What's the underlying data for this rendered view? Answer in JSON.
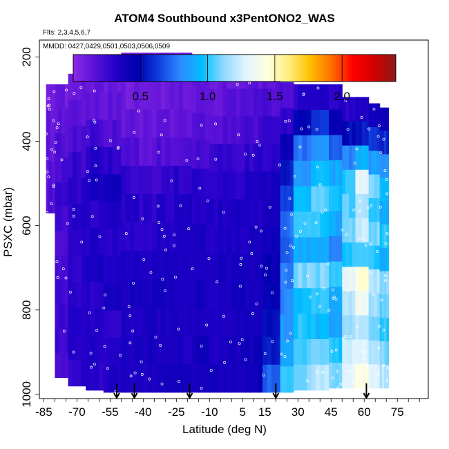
{
  "chart_data": {
    "type": "heatmap",
    "title": "ATOM4 Southbound x3PentONO2_WAS",
    "flights_note": "Flts: 2,3,4,5,6,7",
    "dates_note": "MMDD: 0427,0429,0501,0503,0506,0509",
    "xlabel": "Latitude (deg N)",
    "ylabel": "PSXC (mbar)",
    "xlim": [
      -87,
      89
    ],
    "ylim": [
      1010,
      160
    ],
    "x_tick_labels": [
      "-85",
      "-70",
      "-55",
      "-40",
      "-25",
      "-10",
      "5",
      "15",
      "30",
      "45",
      "60",
      "75"
    ],
    "x_tick_values": [
      -85,
      -70,
      -55,
      -40,
      -25,
      -10,
      5,
      15,
      30,
      45,
      60,
      75
    ],
    "y_tick_labels": [
      "200",
      "400",
      "600",
      "800",
      "1000"
    ],
    "y_tick_values": [
      200,
      400,
      600,
      800,
      1000
    ],
    "colorbar": {
      "min": 0.0,
      "max": 2.4,
      "tick_labels": [
        "0.5",
        "1.0",
        "1.5",
        "2.0"
      ],
      "tick_values": [
        0.5,
        1.0,
        1.5,
        2.0
      ],
      "colors": [
        "#8a2be2",
        "#5a10d8",
        "#2200c8",
        "#0000b0",
        "#1040e0",
        "#2e8bff",
        "#00bfff",
        "#8fd9ff",
        "#e0f4ff",
        "#ffffe0",
        "#ffef80",
        "#ffc000",
        "#ff7000",
        "#ff0000",
        "#d00000",
        "#8b1a1a"
      ]
    },
    "columns": [
      {
        "lat": [
          -84,
          -80
        ],
        "p": [
          265,
          570
        ],
        "profile": [
          0.1,
          0.12,
          0.14,
          0.16,
          0.18
        ]
      },
      {
        "lat": [
          -80,
          -74
        ],
        "p": [
          265,
          960
        ],
        "profile": [
          0.1,
          0.14,
          0.18,
          0.22,
          0.24,
          0.22,
          0.2,
          0.22,
          0.24,
          0.25,
          0.24,
          0.22
        ]
      },
      {
        "lat": [
          -74,
          -66
        ],
        "p": [
          240,
          980
        ],
        "profile": [
          0.12,
          0.16,
          0.2,
          0.26,
          0.3,
          0.32,
          0.28,
          0.3,
          0.32,
          0.34,
          0.3,
          0.28
        ]
      },
      {
        "lat": [
          -66,
          -58
        ],
        "p": [
          220,
          990
        ],
        "profile": [
          0.12,
          0.16,
          0.24,
          0.32,
          0.36,
          0.3,
          0.34,
          0.36,
          0.3,
          0.32,
          0.34,
          0.3
        ]
      },
      {
        "lat": [
          -58,
          -50
        ],
        "p": [
          220,
          995
        ],
        "profile": [
          0.1,
          0.14,
          0.2,
          0.3,
          0.38,
          0.34,
          0.3,
          0.34,
          0.36,
          0.3,
          0.32,
          0.34
        ]
      },
      {
        "lat": [
          -50,
          -42
        ],
        "p": [
          190,
          995
        ],
        "profile": [
          0.08,
          0.1,
          0.14,
          0.18,
          0.28,
          0.32,
          0.3,
          0.36,
          0.38,
          0.34,
          0.36,
          0.34
        ]
      },
      {
        "lat": [
          -42,
          -34
        ],
        "p": [
          190,
          995
        ],
        "profile": [
          0.08,
          0.1,
          0.12,
          0.16,
          0.26,
          0.3,
          0.32,
          0.36,
          0.38,
          0.36,
          0.38,
          0.36
        ]
      },
      {
        "lat": [
          -34,
          -26
        ],
        "p": [
          190,
          995
        ],
        "profile": [
          0.1,
          0.1,
          0.12,
          0.18,
          0.26,
          0.32,
          0.34,
          0.36,
          0.38,
          0.36,
          0.36,
          0.38
        ]
      },
      {
        "lat": [
          -26,
          -18
        ],
        "p": [
          190,
          995
        ],
        "profile": [
          0.1,
          0.12,
          0.14,
          0.2,
          0.3,
          0.34,
          0.36,
          0.36,
          0.38,
          0.36,
          0.36,
          0.38
        ]
      },
      {
        "lat": [
          -18,
          -10
        ],
        "p": [
          200,
          995
        ],
        "profile": [
          0.12,
          0.14,
          0.16,
          0.22,
          0.3,
          0.34,
          0.36,
          0.36,
          0.38,
          0.36,
          0.38,
          0.36
        ]
      },
      {
        "lat": [
          -10,
          -2
        ],
        "p": [
          210,
          995
        ],
        "profile": [
          0.12,
          0.14,
          0.18,
          0.26,
          0.32,
          0.34,
          0.34,
          0.36,
          0.36,
          0.34,
          0.36,
          0.38
        ]
      },
      {
        "lat": [
          -2,
          6
        ],
        "p": [
          210,
          995
        ],
        "profile": [
          0.12,
          0.16,
          0.2,
          0.26,
          0.32,
          0.36,
          0.34,
          0.36,
          0.38,
          0.36,
          0.38,
          0.36
        ]
      },
      {
        "lat": [
          6,
          14
        ],
        "p": [
          210,
          995
        ],
        "profile": [
          0.14,
          0.18,
          0.22,
          0.28,
          0.32,
          0.34,
          0.36,
          0.36,
          0.38,
          0.36,
          0.4,
          0.42
        ]
      },
      {
        "lat": [
          14,
          22
        ],
        "p": [
          210,
          995
        ],
        "profile": [
          0.14,
          0.2,
          0.26,
          0.3,
          0.36,
          0.38,
          0.4,
          0.44,
          0.46,
          0.5,
          0.56,
          0.7
        ]
      },
      {
        "lat": [
          22,
          28
        ],
        "p": [
          260,
          995
        ],
        "profile": [
          0.2,
          0.3,
          0.45,
          0.55,
          0.65,
          0.75,
          0.7,
          0.78,
          0.8,
          0.85,
          0.9,
          1.0
        ]
      },
      {
        "lat": [
          28,
          36
        ],
        "p": [
          265,
          990
        ],
        "profile": [
          0.3,
          0.5,
          0.75,
          0.85,
          0.95,
          1.0,
          0.9,
          1.1,
          0.95,
          1.0,
          1.05,
          1.1
        ]
      },
      {
        "lat": [
          36,
          44
        ],
        "p": [
          265,
          990
        ],
        "profile": [
          0.35,
          0.6,
          0.85,
          0.95,
          1.05,
          1.0,
          0.9,
          1.1,
          1.0,
          0.95,
          1.1,
          1.2
        ]
      },
      {
        "lat": [
          44,
          50
        ],
        "p": [
          265,
          985
        ],
        "profile": [
          0.3,
          0.45,
          0.7,
          0.9,
          0.95,
          0.9,
          0.8,
          1.0,
          0.9,
          0.85,
          1.0,
          1.1
        ]
      },
      {
        "lat": [
          50,
          56
        ],
        "p": [
          295,
          985
        ],
        "profile": [
          0.3,
          0.5,
          0.8,
          1.0,
          1.05,
          1.1,
          1.0,
          1.3,
          1.2,
          1.15,
          1.25,
          1.3
        ]
      },
      {
        "lat": [
          56,
          62
        ],
        "p": [
          295,
          985
        ],
        "profile": [
          0.35,
          0.55,
          0.9,
          1.3,
          1.2,
          1.25,
          1.05,
          1.45,
          1.35,
          1.2,
          1.3,
          1.4
        ]
      },
      {
        "lat": [
          62,
          67
        ],
        "p": [
          310,
          985
        ],
        "profile": [
          0.4,
          0.6,
          0.85,
          1.1,
          1.0,
          1.1,
          1.0,
          1.2,
          1.15,
          1.1,
          1.2,
          1.3
        ]
      },
      {
        "lat": [
          67,
          71
        ],
        "p": [
          320,
          985
        ],
        "profile": [
          0.4,
          0.6,
          0.8,
          0.95,
          0.9,
          1.0,
          0.9,
          1.1,
          1.05,
          1.0,
          1.1,
          1.2
        ]
      }
    ],
    "flight_markers_lat": [
      -52,
      -44,
      -19,
      20,
      61
    ]
  }
}
